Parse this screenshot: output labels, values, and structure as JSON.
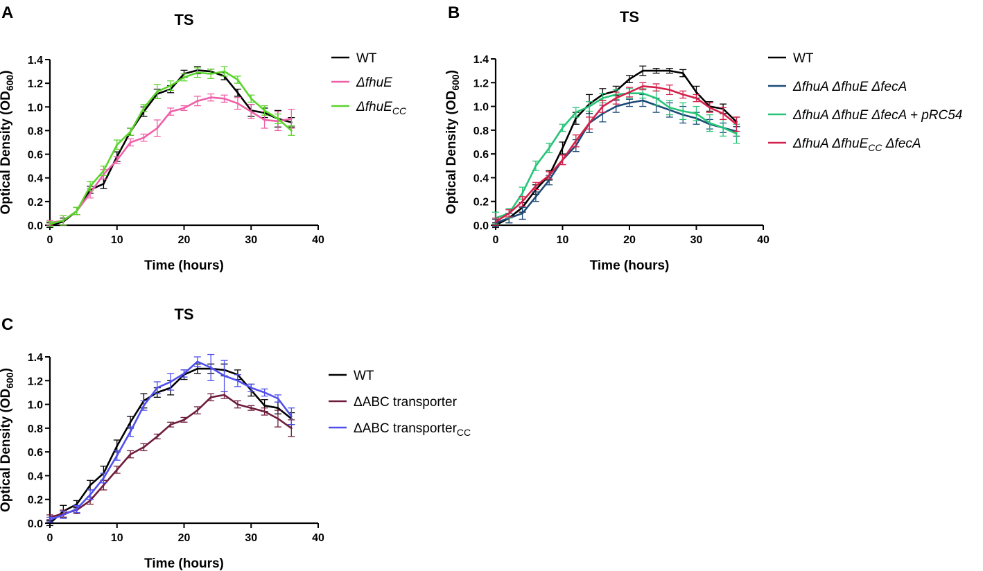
{
  "figure": {
    "panels": [
      "A",
      "B",
      "C"
    ]
  },
  "chart_data": [
    {
      "panel": "A",
      "type": "line",
      "title": "TS",
      "xlabel": "Time (hours)",
      "ylabel": {
        "main": "Optical Density (OD",
        "sub": "600",
        "end": ")"
      },
      "xlim": [
        0,
        40
      ],
      "ylim": [
        0,
        1.4
      ],
      "xticks": [
        "0",
        "10",
        "20",
        "30",
        "40"
      ],
      "yticks": [
        "0.0",
        "0.2",
        "0.4",
        "0.6",
        "0.8",
        "1.0",
        "1.2",
        "1.4"
      ],
      "x": [
        0,
        2,
        4,
        6,
        8,
        10,
        12,
        14,
        16,
        18,
        20,
        22,
        24,
        26,
        28,
        30,
        32,
        34,
        36
      ],
      "series": [
        {
          "key": "a-wt",
          "color": "#000000",
          "legend": [
            {
              "t": "WT"
            }
          ],
          "values": [
            0.0,
            0.03,
            0.12,
            0.3,
            0.35,
            0.58,
            0.79,
            0.96,
            1.11,
            1.15,
            1.28,
            1.31,
            1.3,
            1.26,
            1.12,
            0.97,
            0.95,
            0.9,
            0.87
          ],
          "err": [
            0.02,
            0.03,
            0.03,
            0.03,
            0.04,
            0.04,
            0.03,
            0.04,
            0.04,
            0.03,
            0.03,
            0.03,
            0.02,
            0.03,
            0.03,
            0.05,
            0.04,
            0.07,
            0.04
          ]
        },
        {
          "key": "a-dfhue",
          "color": "#ef5fa7",
          "legend": [
            {
              "t": "ΔfhuE",
              "i": true
            }
          ],
          "values": [
            0.02,
            0.04,
            0.12,
            0.27,
            0.43,
            0.55,
            0.7,
            0.74,
            0.82,
            0.96,
            0.99,
            1.05,
            1.08,
            1.07,
            1.03,
            0.96,
            0.89,
            0.88,
            0.9
          ],
          "err": [
            0.02,
            0.04,
            0.03,
            0.04,
            0.04,
            0.03,
            0.03,
            0.03,
            0.07,
            0.03,
            0.02,
            0.04,
            0.03,
            0.03,
            0.05,
            0.06,
            0.07,
            0.08,
            0.08
          ]
        },
        {
          "key": "a-dfhuecc",
          "color": "#5bd42c",
          "legend": [
            {
              "t": "ΔfhuE",
              "i": true
            },
            {
              "t": "CC",
              "i": true,
              "sub": true
            }
          ],
          "values": [
            0.01,
            0.04,
            0.12,
            0.33,
            0.46,
            0.68,
            0.79,
            0.99,
            1.13,
            1.18,
            1.25,
            1.29,
            1.28,
            1.3,
            1.23,
            1.07,
            0.97,
            0.9,
            0.8
          ],
          "err": [
            0.02,
            0.04,
            0.03,
            0.04,
            0.04,
            0.04,
            0.03,
            0.03,
            0.06,
            0.04,
            0.03,
            0.04,
            0.04,
            0.04,
            0.03,
            0.03,
            0.04,
            0.04,
            0.04
          ]
        }
      ]
    },
    {
      "panel": "B",
      "type": "line",
      "title": "TS",
      "xlabel": "Time (hours)",
      "ylabel": {
        "main": "Optical Density (OD",
        "sub": "600",
        "end": ")"
      },
      "xlim": [
        0,
        40
      ],
      "ylim": [
        0,
        1.4
      ],
      "xticks": [
        "0",
        "10",
        "20",
        "30",
        "40"
      ],
      "yticks": [
        "0.0",
        "0.2",
        "0.4",
        "0.6",
        "0.8",
        "1.0",
        "1.2",
        "1.4"
      ],
      "x": [
        0,
        2,
        4,
        6,
        8,
        10,
        12,
        14,
        16,
        18,
        20,
        22,
        24,
        26,
        28,
        30,
        32,
        34,
        36
      ],
      "series": [
        {
          "key": "b-wt",
          "color": "#000000",
          "legend": [
            {
              "t": "WT"
            }
          ],
          "values": [
            0.0,
            0.06,
            0.15,
            0.3,
            0.42,
            0.65,
            0.9,
            1.02,
            1.1,
            1.13,
            1.23,
            1.3,
            1.3,
            1.3,
            1.28,
            1.12,
            1.0,
            0.98,
            0.87
          ],
          "err": [
            0.02,
            0.04,
            0.04,
            0.04,
            0.04,
            0.05,
            0.05,
            0.08,
            0.05,
            0.04,
            0.03,
            0.04,
            0.02,
            0.02,
            0.03,
            0.05,
            0.04,
            0.04,
            0.04
          ]
        },
        {
          "key": "b-triple",
          "color": "#1c4a78",
          "legend": [
            {
              "t": "ΔfhuA ΔfhuE ΔfecA",
              "i": true
            }
          ],
          "values": [
            0.02,
            0.06,
            0.1,
            0.24,
            0.38,
            0.55,
            0.67,
            0.86,
            0.94,
            1.0,
            1.03,
            1.05,
            1.01,
            0.97,
            0.93,
            0.9,
            0.85,
            0.82,
            0.79
          ],
          "err": [
            0.03,
            0.04,
            0.05,
            0.04,
            0.04,
            0.04,
            0.05,
            0.08,
            0.07,
            0.05,
            0.03,
            0.05,
            0.06,
            0.06,
            0.07,
            0.05,
            0.04,
            0.04,
            0.04
          ]
        },
        {
          "key": "b-prc54",
          "color": "#27c478",
          "legend": [
            {
              "t": "ΔfhuA ΔfhuE ΔfecA + pRC54",
              "i": true
            }
          ],
          "values": [
            0.06,
            0.1,
            0.27,
            0.5,
            0.65,
            0.82,
            0.95,
            1.0,
            1.07,
            1.1,
            1.11,
            1.11,
            1.07,
            0.99,
            0.96,
            0.94,
            0.86,
            0.82,
            0.77
          ],
          "err": [
            0.05,
            0.04,
            0.05,
            0.04,
            0.04,
            0.03,
            0.04,
            0.04,
            0.04,
            0.04,
            0.04,
            0.04,
            0.06,
            0.06,
            0.07,
            0.06,
            0.07,
            0.07,
            0.08
          ]
        },
        {
          "key": "b-fhuecc",
          "color": "#d4204a",
          "legend": [
            {
              "t": "ΔfhuA ΔfhuE",
              "i": true
            },
            {
              "t": "CC",
              "i": true,
              "sub": true
            },
            {
              "t": " ΔfecA",
              "i": true
            }
          ],
          "values": [
            0.03,
            0.1,
            0.2,
            0.33,
            0.42,
            0.55,
            0.71,
            0.86,
            1.0,
            1.07,
            1.12,
            1.17,
            1.16,
            1.14,
            1.1,
            1.07,
            0.99,
            0.94,
            0.85
          ],
          "err": [
            0.03,
            0.03,
            0.04,
            0.03,
            0.03,
            0.04,
            0.05,
            0.05,
            0.05,
            0.05,
            0.04,
            0.03,
            0.03,
            0.04,
            0.03,
            0.03,
            0.04,
            0.05,
            0.06
          ]
        }
      ]
    },
    {
      "panel": "C",
      "type": "line",
      "title": "TS",
      "xlabel": "Time (hours)",
      "ylabel": {
        "main": "Optical Density (OD",
        "sub": "600",
        "end": ")"
      },
      "xlim": [
        0,
        40
      ],
      "ylim": [
        0,
        1.4
      ],
      "xticks": [
        "0",
        "10",
        "20",
        "30",
        "40"
      ],
      "yticks": [
        "0.0",
        "0.2",
        "0.4",
        "0.6",
        "0.8",
        "1.0",
        "1.2",
        "1.4"
      ],
      "x": [
        0,
        2,
        4,
        6,
        8,
        10,
        12,
        14,
        16,
        18,
        20,
        22,
        24,
        26,
        28,
        30,
        32,
        34,
        36
      ],
      "series": [
        {
          "key": "c-wt",
          "color": "#000000",
          "legend": [
            {
              "t": "WT"
            }
          ],
          "values": [
            0.0,
            0.1,
            0.16,
            0.32,
            0.42,
            0.65,
            0.85,
            1.03,
            1.1,
            1.14,
            1.25,
            1.3,
            1.3,
            1.29,
            1.25,
            1.12,
            0.99,
            0.97,
            0.88
          ],
          "err": [
            0.02,
            0.05,
            0.03,
            0.04,
            0.06,
            0.05,
            0.05,
            0.06,
            0.04,
            0.06,
            0.04,
            0.04,
            0.04,
            0.05,
            0.04,
            0.05,
            0.05,
            0.05,
            0.05
          ]
        },
        {
          "key": "c-dabc",
          "color": "#6e1d3c",
          "legend": [
            {
              "t": "ΔABC transporter"
            }
          ],
          "values": [
            0.05,
            0.08,
            0.11,
            0.19,
            0.32,
            0.45,
            0.58,
            0.64,
            0.73,
            0.83,
            0.87,
            0.95,
            1.06,
            1.08,
            1.0,
            0.97,
            0.94,
            0.88,
            0.8
          ],
          "err": [
            0.02,
            0.03,
            0.03,
            0.03,
            0.04,
            0.03,
            0.03,
            0.03,
            0.02,
            0.02,
            0.02,
            0.03,
            0.03,
            0.03,
            0.03,
            0.02,
            0.03,
            0.07,
            0.07
          ]
        },
        {
          "key": "c-dabccc",
          "color": "#4f4ff0",
          "legend": [
            {
              "t": "ΔABC transporter"
            },
            {
              "t": "CC",
              "sub": true
            }
          ],
          "values": [
            0.03,
            0.07,
            0.12,
            0.24,
            0.38,
            0.57,
            0.77,
            0.99,
            1.14,
            1.19,
            1.26,
            1.36,
            1.31,
            1.24,
            1.2,
            1.14,
            1.1,
            1.05,
            0.9
          ],
          "err": [
            0.02,
            0.03,
            0.03,
            0.04,
            0.04,
            0.04,
            0.04,
            0.04,
            0.05,
            0.07,
            0.03,
            0.04,
            0.11,
            0.13,
            0.05,
            0.03,
            0.03,
            0.03,
            0.07
          ]
        }
      ]
    }
  ]
}
